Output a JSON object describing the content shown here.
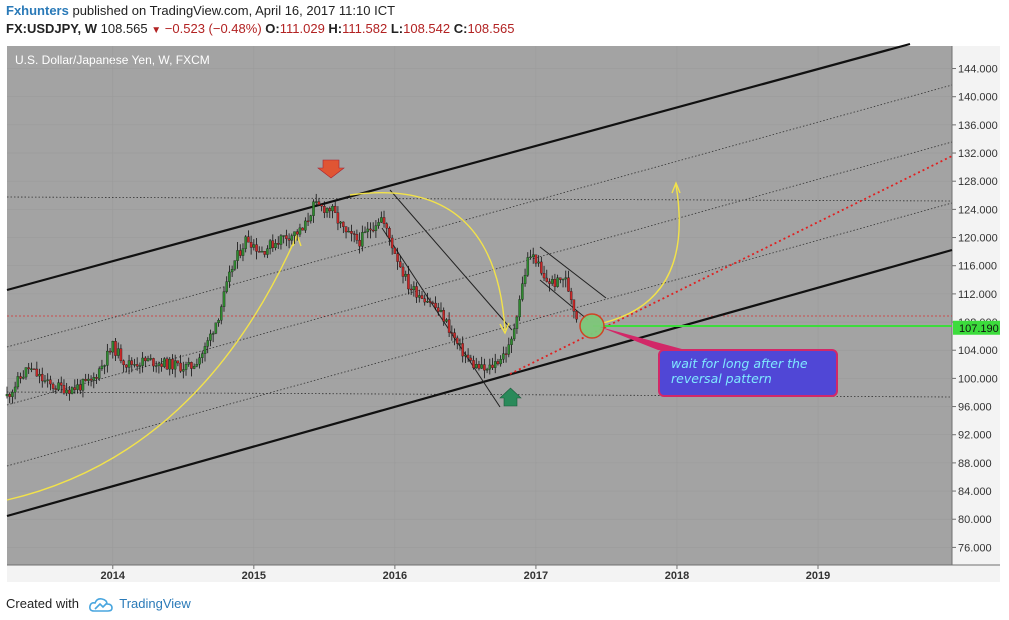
{
  "header": {
    "author": "Fxhunters",
    "published_text": "published on TradingView.com, April 16, 2017 11:10 ICT",
    "symbol_line": "FX:USDJPY, W",
    "last_price": "108.565",
    "change": "−0.523 (−0.48%)",
    "o_label": "O:",
    "o_value": "111.029",
    "h_label": "H:",
    "h_value": "111.582",
    "l_label": "L:",
    "l_value": "108.542",
    "c_label": "C:",
    "c_value": "108.565"
  },
  "footer": {
    "created_with": "Created with",
    "brand": "TradingView"
  },
  "chart_data": {
    "type": "candlestick",
    "title": "U.S. Dollar/Japanese Yen, W, FXCM",
    "x_ticks": [
      "2014",
      "2015",
      "2016",
      "2017",
      "2018",
      "2019"
    ],
    "y_ticks": [
      "76.000",
      "80.000",
      "84.000",
      "88.000",
      "92.000",
      "96.000",
      "100.000",
      "104.000",
      "108.000",
      "112.000",
      "116.000",
      "120.000",
      "124.000",
      "128.000",
      "132.000",
      "136.000",
      "140.000",
      "144.000"
    ],
    "ylim": [
      73.5,
      147.2
    ],
    "xlim": [
      2013.25,
      2019.95
    ],
    "price_marker": {
      "value": 107.19,
      "label": "107.190"
    },
    "annotation": {
      "lines": [
        "wait for long after the",
        "reversal pattern"
      ]
    },
    "approx_weekly_path": [
      [
        2013.25,
        97.5
      ],
      [
        2013.4,
        101.5
      ],
      [
        2013.55,
        99.0
      ],
      [
        2013.7,
        98.5
      ],
      [
        2013.85,
        99.5
      ],
      [
        2014.0,
        104.5
      ],
      [
        2014.1,
        102.0
      ],
      [
        2014.25,
        102.5
      ],
      [
        2014.4,
        102.0
      ],
      [
        2014.55,
        101.5
      ],
      [
        2014.65,
        104.0
      ],
      [
        2014.75,
        109.0
      ],
      [
        2014.85,
        116.0
      ],
      [
        2014.95,
        120.0
      ],
      [
        2015.05,
        118.0
      ],
      [
        2015.2,
        120.0
      ],
      [
        2015.35,
        121.0
      ],
      [
        2015.42,
        124.5
      ],
      [
        2015.55,
        124.0
      ],
      [
        2015.65,
        120.5
      ],
      [
        2015.75,
        119.5
      ],
      [
        2015.9,
        123.0
      ],
      [
        2016.0,
        118.0
      ],
      [
        2016.1,
        113.0
      ],
      [
        2016.25,
        111.0
      ],
      [
        2016.35,
        108.5
      ],
      [
        2016.45,
        104.5
      ],
      [
        2016.55,
        102.0
      ],
      [
        2016.65,
        101.0
      ],
      [
        2016.75,
        103.0
      ],
      [
        2016.82,
        104.5
      ],
      [
        2016.88,
        111.0
      ],
      [
        2016.95,
        117.5
      ],
      [
        2017.0,
        117.0
      ],
      [
        2017.05,
        114.0
      ],
      [
        2017.15,
        113.5
      ],
      [
        2017.2,
        114.5
      ],
      [
        2017.25,
        111.5
      ],
      [
        2017.29,
        108.6
      ]
    ]
  }
}
